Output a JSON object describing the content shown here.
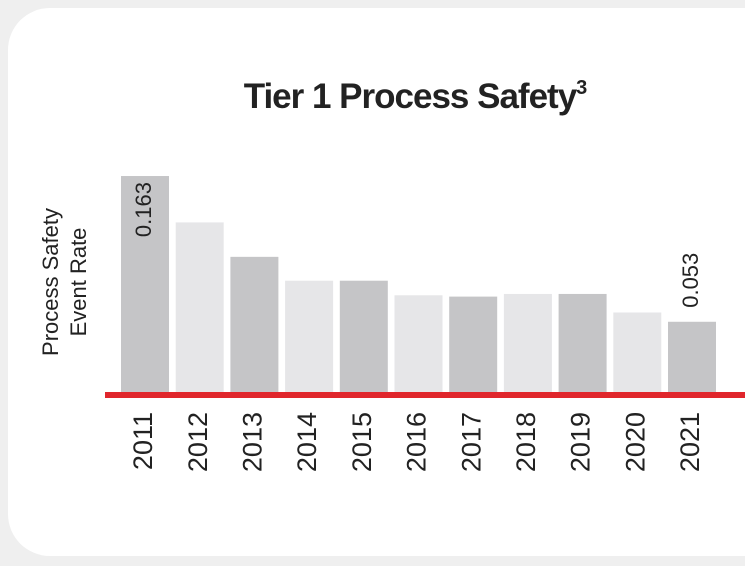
{
  "chart_data": {
    "type": "bar",
    "title": "Tier 1 Process Safety",
    "title_superscript": "3",
    "y_label": [
      "Process Safety",
      "Event Rate"
    ],
    "categories": [
      "2011",
      "2012",
      "2013",
      "2014",
      "2015",
      "2016",
      "2017",
      "2018",
      "2019",
      "2020",
      "2021"
    ],
    "values": [
      0.163,
      0.128,
      0.102,
      0.084,
      0.084,
      0.073,
      0.072,
      0.074,
      0.074,
      0.06,
      0.053
    ],
    "value_labels": [
      "0.163",
      null,
      null,
      null,
      null,
      null,
      null,
      null,
      null,
      null,
      "0.053"
    ],
    "colors": [
      "#c5c5c7",
      "#e6e6e8",
      "#c5c5c7",
      "#e6e6e8",
      "#c5c5c7",
      "#e6e6e8",
      "#c5c5c7",
      "#e6e6e8",
      "#c5c5c7",
      "#e6e6e8",
      "#c5c5c7"
    ],
    "baseline_color": "#e0262c"
  }
}
